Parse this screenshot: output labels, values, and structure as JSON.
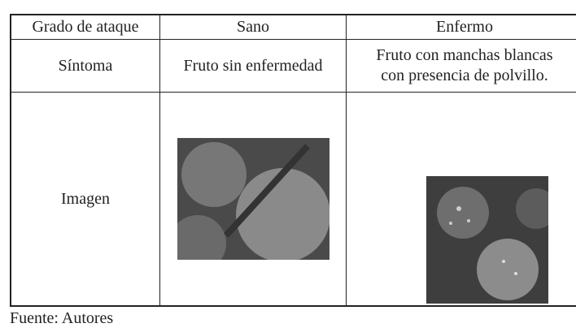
{
  "table": {
    "header": [
      "Grado de ataque",
      "Sano",
      "Enfermo"
    ],
    "rows": [
      [
        "Síntoma",
        "Fruto sin enfermedad",
        [
          "Fruto con manchas blancas",
          "con presencia de polvillo."
        ]
      ],
      [
        "Imagen"
      ]
    ]
  },
  "source": "Fuente: Autores"
}
